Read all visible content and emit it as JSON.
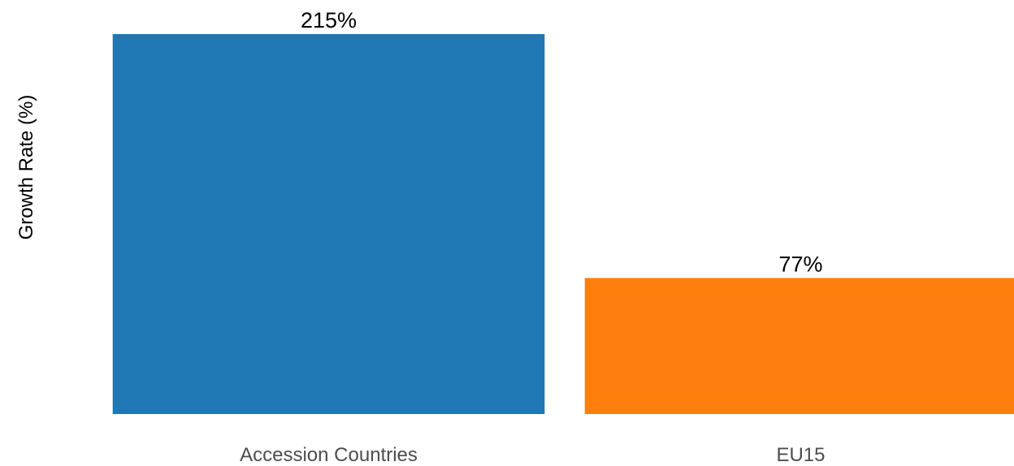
{
  "chart_data": {
    "type": "bar",
    "title": "",
    "xlabel": "",
    "ylabel": "Growth Rate (%)",
    "categories": [
      "Accession Countries",
      "EU15"
    ],
    "values": [
      215,
      77
    ],
    "value_labels": [
      "215%",
      "77%"
    ],
    "colors": [
      "#1f77b4",
      "#ff7f0e"
    ],
    "ylim": [
      0,
      215
    ],
    "grid": false,
    "legend": "none"
  }
}
